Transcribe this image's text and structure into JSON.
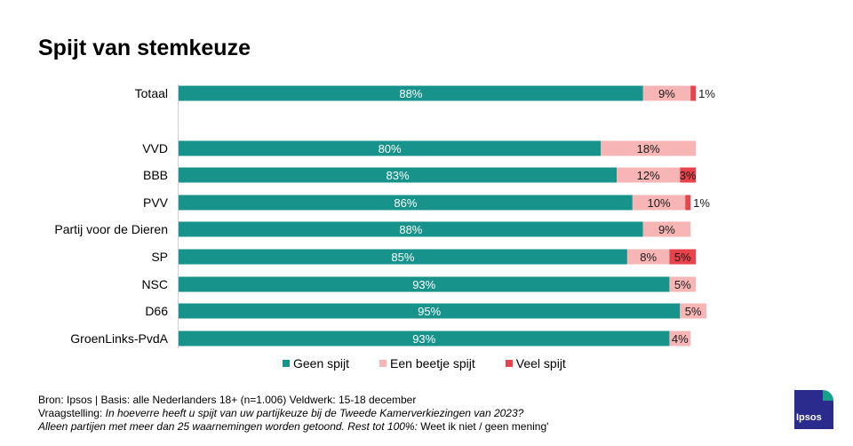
{
  "title": "Spijt van stemkeuze",
  "colors": {
    "geen": "#17938b",
    "beetje": "#f7b5b5",
    "veel": "#e8424a",
    "axis": "#d0d0d0"
  },
  "chart_data": {
    "type": "bar",
    "orientation": "horizontal",
    "stacked": true,
    "title": "Spijt van stemkeuze",
    "xlim": [
      0,
      100
    ],
    "categories": [
      "Totaal",
      "VVD",
      "BBB",
      "PVV",
      "Partij voor de Dieren",
      "SP",
      "NSC",
      "D66",
      "GroenLinks-PvdA"
    ],
    "series": [
      {
        "name": "Geen spijt",
        "values": [
          88,
          80,
          83,
          86,
          88,
          85,
          93,
          95,
          93
        ]
      },
      {
        "name": "Een beetje spijt",
        "values": [
          9,
          18,
          12,
          10,
          9,
          8,
          5,
          5,
          4
        ]
      },
      {
        "name": "Veel spijt",
        "values": [
          1,
          0,
          3,
          1,
          0,
          5,
          0,
          0,
          0
        ]
      }
    ],
    "labels": [
      [
        "88%",
        "9%",
        "1%"
      ],
      [
        "80%",
        "18%",
        ""
      ],
      [
        "83%",
        "12%",
        "3%"
      ],
      [
        "86%",
        "10%",
        "1%"
      ],
      [
        "88%",
        "9%",
        ""
      ],
      [
        "85%",
        "8%",
        "5%"
      ],
      [
        "93%",
        "5%",
        ""
      ],
      [
        "95%",
        "5%",
        ""
      ],
      [
        "93%",
        "4%",
        ""
      ]
    ]
  },
  "legend": {
    "geen": "Geen spijt",
    "beetje": "Een beetje spijt",
    "veel": "Veel spijt"
  },
  "footer": {
    "line1": "Bron: Ipsos | Basis: alle Nederlanders  18+ (n=1.006) Veldwerk:  15-18  december",
    "line2_prefix": "Vraagstelling: ",
    "line2_question": "In hoeverre  heeft u spijt van uw  partijkeuze bij de Tweede  Kamerverkiezingen  van 2023?",
    "line3_note": "Alleen partijen  met meer dan 25 waarnemingen  worden  getoond. Rest tot 100%: ",
    "line3_rest": "Weet ik niet / geen mening'"
  },
  "logo": "Ipsos"
}
